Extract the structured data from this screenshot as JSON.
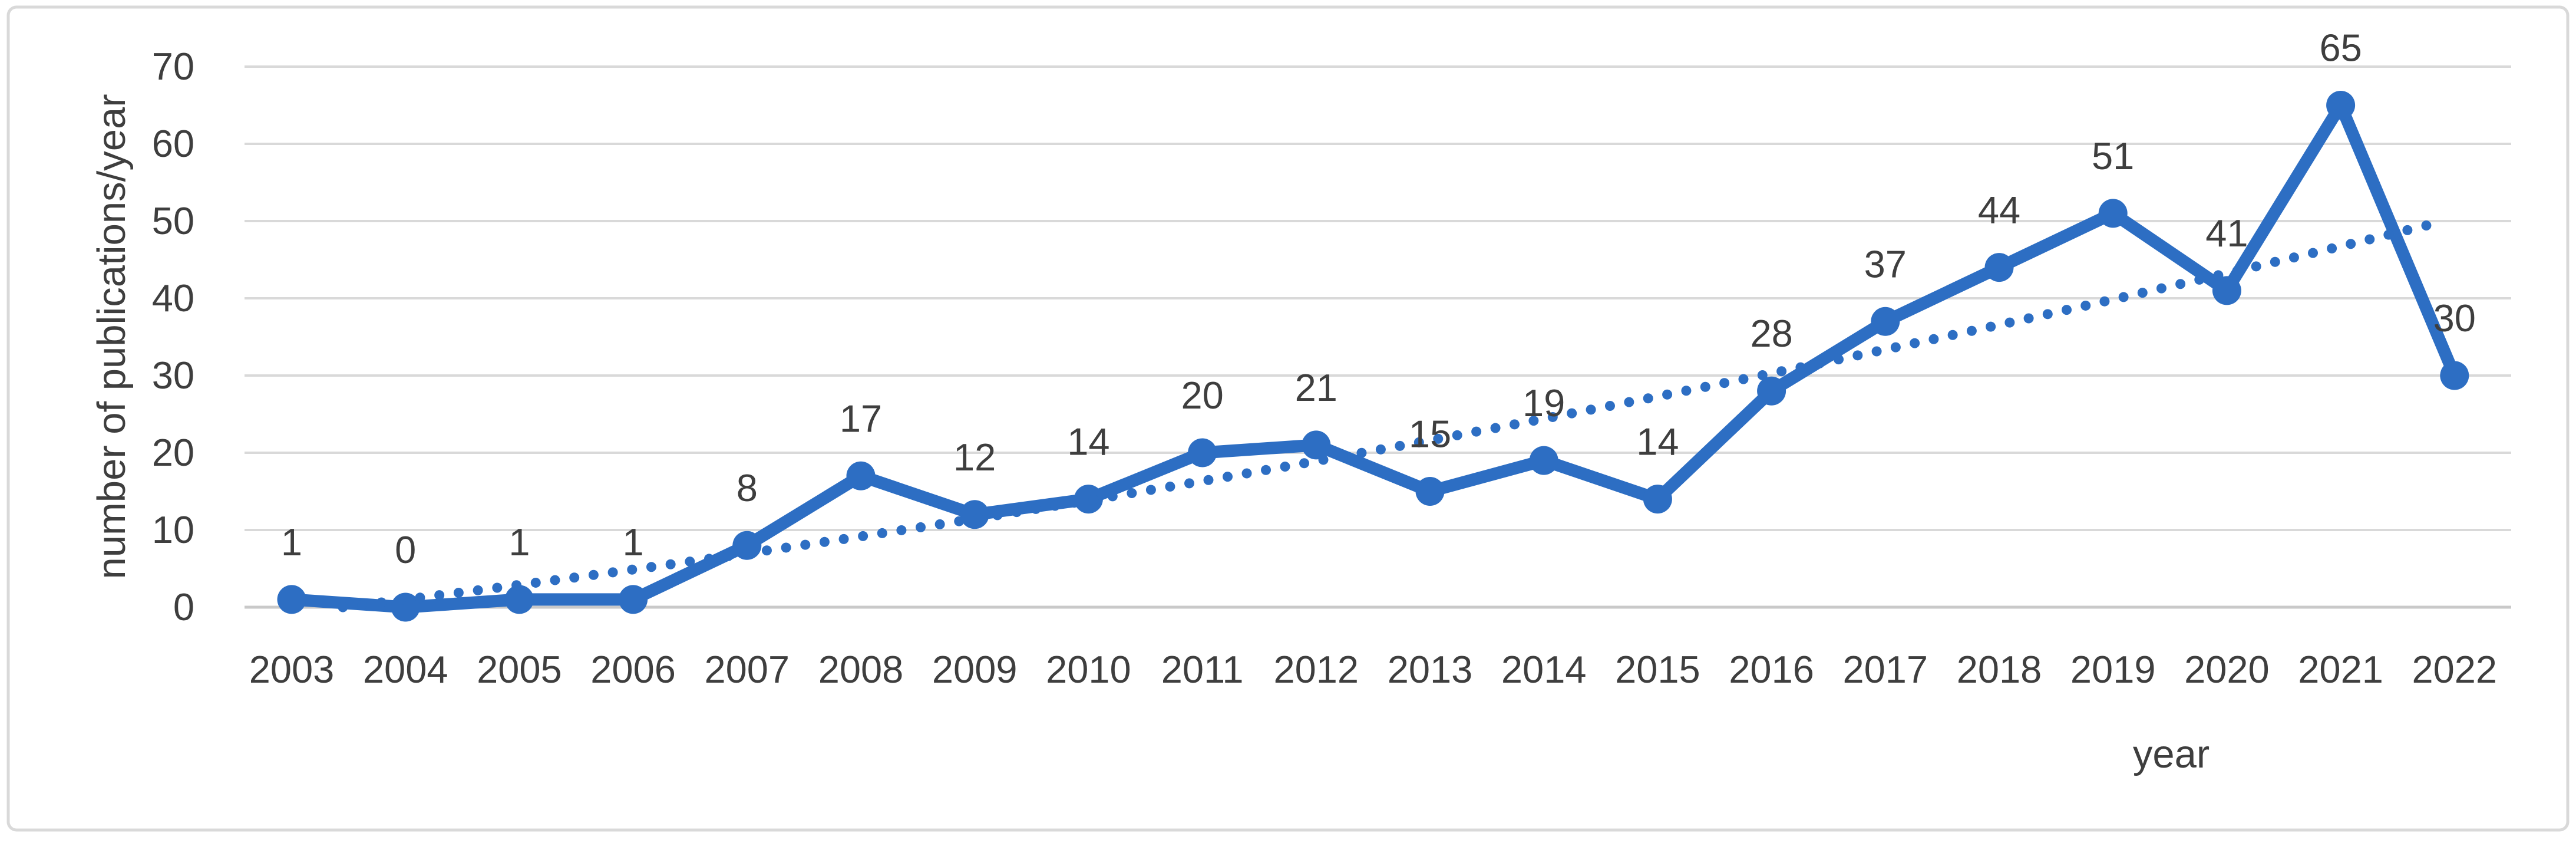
{
  "chart_data": {
    "type": "line",
    "title": "",
    "xlabel": "year",
    "ylabel": "number of publications/year",
    "categories": [
      "2003",
      "2004",
      "2005",
      "2006",
      "2007",
      "2008",
      "2009",
      "2010",
      "2011",
      "2012",
      "2013",
      "2014",
      "2015",
      "2016",
      "2017",
      "2018",
      "2019",
      "2020",
      "2021",
      "2022"
    ],
    "series": [
      {
        "name": "number of publications per year",
        "type": "line-with-markers",
        "marker": "circle",
        "line_style": "solid",
        "values": [
          1,
          0,
          1,
          1,
          8,
          17,
          12,
          14,
          20,
          21,
          15,
          19,
          14,
          28,
          37,
          44,
          51,
          41,
          65,
          30
        ],
        "data_labels": true
      },
      {
        "name": "trendline",
        "type": "polynomial-trendline-order-2",
        "line_style": "dotted",
        "coefficients": {
          "a": -0.79,
          "b": 1.74,
          "c": 0.05
        },
        "start_year_index": 0.45,
        "end_year_index": 19,
        "start_value": 0,
        "end_value": 50
      }
    ],
    "ylim": [
      0,
      70
    ],
    "yticks": [
      0,
      10,
      20,
      30,
      40,
      50,
      60,
      70
    ],
    "grid": "horizontal",
    "legend": "none",
    "colors": {
      "accent": "#2d6ec3",
      "gridline": "#d9d9d9",
      "axis_line": "#c9c9c9",
      "text": "#3e3e3e",
      "border": "#d9d9d9",
      "background": "#ffffff"
    }
  }
}
